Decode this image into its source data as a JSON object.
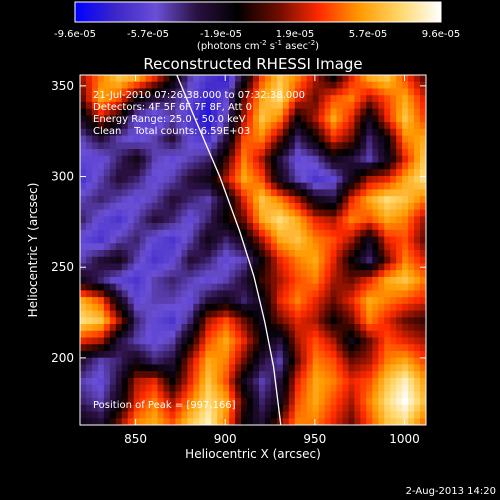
{
  "chart_data": {
    "type": "heatmap",
    "title": "Reconstructed RHESSI Image",
    "xlabel": "Heliocentric X (arcsec)",
    "ylabel": "Heliocentric Y (arcsec)",
    "xlim": [
      819,
      1012
    ],
    "ylim": [
      163,
      356
    ],
    "x_ticks": [
      850,
      900,
      950,
      1000
    ],
    "y_ticks": [
      200,
      250,
      300,
      350
    ],
    "colorbar": {
      "range": [
        -9.6e-05,
        9.6e-05
      ],
      "ticks": [
        "-9.6e-05",
        "-5.7e-05",
        "-1.9e-05",
        "1.9e-05",
        "5.7e-05",
        "9.6e-05"
      ],
      "unit_text": "(photons cm",
      "unit_exp1": "-2",
      "unit_mid": " s",
      "unit_exp2": "-1",
      "unit_mid2": " asec",
      "unit_exp3": "-2",
      "unit_end": ")",
      "colormap": [
        "#0000ff",
        "#3c26c8",
        "#6a4fd6",
        "#2a1040",
        "#000000",
        "#6e0c00",
        "#ff2a00",
        "#ff9a00",
        "#ffd76a",
        "#ffffff"
      ]
    },
    "annotations": [
      "21-Jul-2010 07:26:38.000 to 07:32:38.000",
      "Detectors: 4F 5F 6F 7F 8F, Att 0",
      "Energy Range: 25.0 - 50.0 keV",
      "Clean    Total counts: 6.59E+03"
    ],
    "peak_label": "Position of Peak = [997,166]",
    "date_stamp": "2-Aug-2013 14:20",
    "limb": [
      [
        873,
        356
      ],
      [
        884,
        330
      ],
      [
        897,
        300
      ],
      [
        908,
        270
      ],
      [
        916,
        245
      ],
      [
        922,
        220
      ],
      [
        927,
        195
      ],
      [
        931,
        163
      ]
    ],
    "values": [
      [
        0.2,
        0.5,
        0.7,
        0.6,
        0.3,
        -0.1,
        -0.5,
        -0.7,
        -0.8,
        -0.2,
        0.4,
        0.7,
        0.5,
        0.2,
        -0.1,
        0.3,
        0.6,
        0.7,
        0.4,
        0.1
      ],
      [
        0.1,
        0.6,
        0.4,
        -0.1,
        -0.3,
        -0.4,
        -0.6,
        -0.8,
        -0.6,
        0.1,
        0.6,
        0.8,
        0.3,
        0.1,
        0.4,
        0.5,
        0.2,
        0.4,
        0.6,
        0.3
      ],
      [
        -0.2,
        0.2,
        -0.1,
        -0.6,
        -0.7,
        -0.5,
        -0.7,
        -0.9,
        -0.5,
        0.2,
        0.7,
        0.5,
        -0.1,
        0.2,
        0.6,
        0.3,
        -0.2,
        0.3,
        0.7,
        0.4
      ],
      [
        -0.5,
        -0.3,
        -0.5,
        -0.6,
        -0.5,
        -0.3,
        -0.6,
        -0.7,
        -0.3,
        0.4,
        0.5,
        0.1,
        -0.4,
        -0.1,
        0.3,
        0.1,
        -0.4,
        -0.1,
        0.5,
        0.6
      ],
      [
        -0.6,
        -0.6,
        -0.4,
        -0.2,
        -0.5,
        -0.6,
        -0.5,
        -0.4,
        0.0,
        0.5,
        0.2,
        -0.3,
        -0.6,
        -0.5,
        -0.2,
        -0.3,
        -0.5,
        -0.2,
        0.3,
        0.7
      ],
      [
        -0.7,
        -0.5,
        -0.3,
        -0.4,
        -0.6,
        -0.5,
        -0.3,
        -0.2,
        0.2,
        0.6,
        0.4,
        -0.2,
        -0.5,
        -0.7,
        -0.6,
        -0.2,
        0.2,
        0.3,
        0.6,
        0.8
      ],
      [
        -0.5,
        -0.4,
        -0.5,
        -0.6,
        -0.5,
        -0.3,
        -0.4,
        -0.5,
        -0.2,
        0.3,
        0.7,
        0.5,
        0.2,
        -0.2,
        -0.3,
        0.3,
        0.6,
        0.8,
        0.7,
        0.5
      ],
      [
        -0.4,
        -0.6,
        -0.7,
        -0.5,
        -0.3,
        -0.4,
        -0.6,
        -0.4,
        -0.1,
        0.1,
        0.6,
        0.8,
        0.6,
        0.3,
        0.2,
        0.5,
        0.4,
        0.6,
        0.5,
        0.2
      ],
      [
        -0.6,
        -0.7,
        -0.5,
        -0.4,
        -0.6,
        -0.7,
        -0.5,
        -0.2,
        -0.4,
        -0.2,
        0.2,
        0.6,
        0.7,
        0.5,
        0.4,
        0.2,
        -0.2,
        0.3,
        0.4,
        0.1
      ],
      [
        -0.5,
        -0.3,
        -0.2,
        -0.5,
        -0.7,
        -0.6,
        -0.3,
        -0.4,
        -0.6,
        -0.5,
        -0.1,
        0.3,
        0.5,
        0.6,
        0.3,
        -0.1,
        -0.4,
        0.1,
        0.5,
        0.3
      ],
      [
        -0.2,
        -0.4,
        -0.6,
        -0.7,
        -0.5,
        -0.4,
        -0.5,
        -0.6,
        -0.5,
        -0.3,
        0.0,
        0.2,
        0.4,
        0.5,
        0.2,
        0.1,
        0.3,
        0.6,
        0.7,
        0.5
      ],
      [
        0.6,
        0.4,
        -0.2,
        -0.6,
        -0.5,
        -0.5,
        -0.6,
        -0.3,
        -0.2,
        -0.4,
        -0.2,
        0.3,
        0.5,
        0.3,
        0.1,
        0.3,
        0.6,
        0.5,
        0.4,
        0.3
      ],
      [
        0.8,
        0.7,
        0.2,
        -0.4,
        -0.6,
        -0.7,
        -0.4,
        0.2,
        0.4,
        0.1,
        -0.2,
        0.1,
        0.3,
        0.2,
        -0.1,
        0.1,
        0.5,
        0.3,
        0.1,
        0.0
      ],
      [
        0.3,
        0.2,
        -0.3,
        -0.5,
        -0.6,
        -0.5,
        -0.1,
        0.4,
        0.6,
        0.3,
        -0.1,
        -0.3,
        0.2,
        0.4,
        0.2,
        -0.2,
        0.1,
        0.4,
        0.3,
        0.2
      ],
      [
        -0.3,
        -0.5,
        -0.4,
        -0.2,
        -0.4,
        -0.3,
        0.2,
        0.6,
        0.5,
        0.1,
        -0.3,
        -0.5,
        0.1,
        0.5,
        0.4,
        0.1,
        0.2,
        0.5,
        0.6,
        0.4
      ],
      [
        -0.5,
        -0.6,
        -0.3,
        0.2,
        0.3,
        -0.1,
        0.3,
        0.7,
        0.4,
        -0.2,
        -0.5,
        -0.3,
        0.3,
        0.6,
        0.5,
        0.3,
        0.4,
        0.7,
        0.9,
        0.6
      ],
      [
        -0.4,
        -0.5,
        -0.2,
        0.3,
        0.5,
        0.2,
        0.5,
        0.8,
        0.6,
        0.0,
        -0.4,
        -0.2,
        0.4,
        0.6,
        0.4,
        0.2,
        0.5,
        0.8,
        1.0,
        0.7
      ],
      [
        -0.2,
        -0.3,
        0.1,
        0.5,
        0.6,
        0.4,
        0.7,
        0.9,
        0.5,
        -0.1,
        -0.3,
        0.1,
        0.5,
        0.5,
        0.3,
        0.1,
        0.4,
        0.7,
        0.8,
        0.5
      ]
    ]
  }
}
